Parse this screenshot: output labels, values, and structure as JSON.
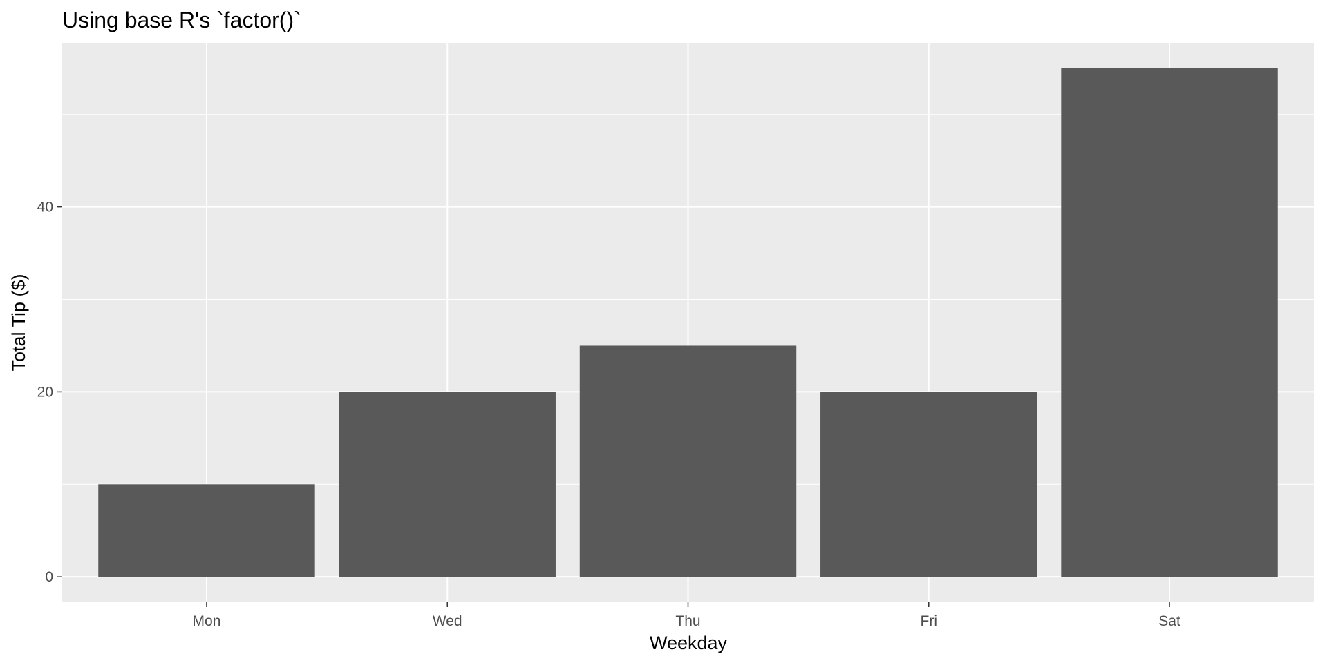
{
  "chart_data": {
    "type": "bar",
    "title": "Using base R's `factor()`",
    "xlabel": "Weekday",
    "ylabel": "Total Tip ($)",
    "categories": [
      "Mon",
      "Wed",
      "Thu",
      "Fri",
      "Sat"
    ],
    "values": [
      10,
      20,
      25,
      20,
      55
    ],
    "ylim": [
      -2.75,
      57.75
    ],
    "y_ticks": [
      0,
      20,
      40
    ],
    "y_tick_labels": [
      "0",
      "20",
      "40"
    ],
    "y_minor_ticks": [
      10,
      30,
      50
    ],
    "grid": true,
    "legend": "none",
    "colors": {
      "bar": "#595959",
      "panel": "#ebebeb",
      "grid": "#ffffff",
      "tick_text": "#4d4d4d",
      "tick_mark": "#333333"
    }
  }
}
